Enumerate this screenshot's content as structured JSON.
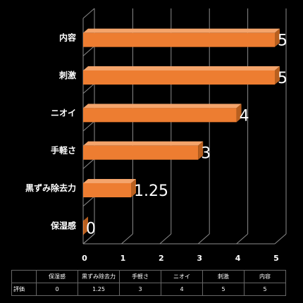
{
  "chart_data": {
    "type": "bar",
    "orientation": "horizontal",
    "style": "3d",
    "categories": [
      "保湿感",
      "黒ずみ除去力",
      "手軽さ",
      "ニオイ",
      "刺激",
      "内容"
    ],
    "series": [
      {
        "name": "評価",
        "values": [
          0,
          1.25,
          3,
          4,
          5,
          5
        ]
      }
    ],
    "xlim": [
      0,
      5
    ],
    "xticks": [
      0,
      1,
      2,
      3,
      4,
      5
    ],
    "grid": true,
    "data_labels": true,
    "data_table": true,
    "colors": {
      "background": "#000000",
      "bar": "#ED7D31",
      "bar_top": "#F4A46B",
      "bar_side": "#B85F1F",
      "grid": "#8C8C8C",
      "text": "#FFFFFF"
    }
  },
  "table": {
    "row_label": "評価",
    "headers": [
      "保湿感",
      "黒ずみ除去力",
      "手軽さ",
      "ニオイ",
      "刺激",
      "内容"
    ],
    "values": [
      "0",
      "1.25",
      "3",
      "4",
      "5",
      "5"
    ]
  }
}
